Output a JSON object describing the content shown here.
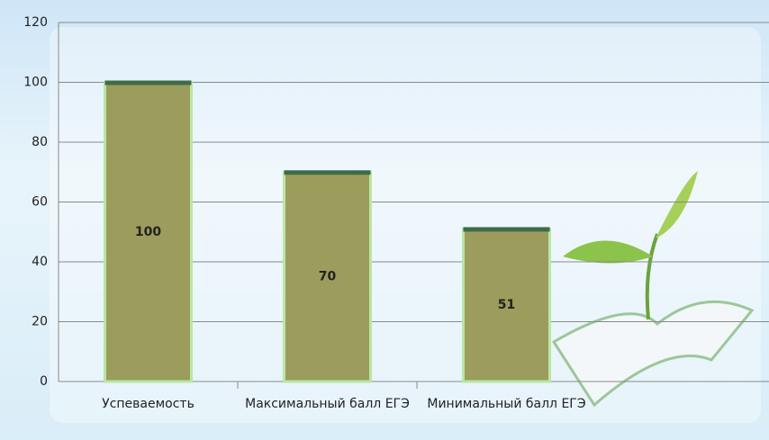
{
  "chart_data": {
    "type": "bar",
    "categories": [
      "Успеваемость",
      "Максимальный балл ЕГЭ",
      "Минимальный балл ЕГЭ"
    ],
    "values": [
      100,
      70,
      51
    ],
    "color": "#9c9c5c",
    "ylim": [
      0,
      120
    ],
    "yticks": [
      0,
      20,
      40,
      60,
      80,
      100,
      120
    ],
    "grid": true
  }
}
